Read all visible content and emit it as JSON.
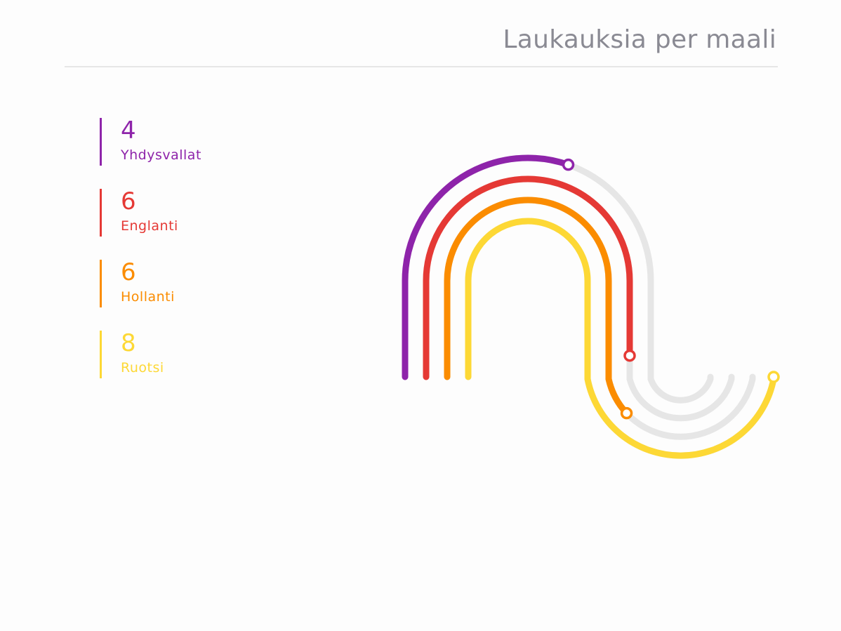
{
  "chart_data": {
    "type": "arc",
    "title": "Laukauksia per maali",
    "max": 8,
    "series": [
      {
        "name": "Yhdysvallat",
        "value": 4,
        "color": "#8e24aa"
      },
      {
        "name": "Englanti",
        "value": 6,
        "color": "#e53935"
      },
      {
        "name": "Hollanti",
        "value": 6,
        "color": "#fb8c00"
      },
      {
        "name": "Ruotsi",
        "value": 8,
        "color": "#fdd835"
      }
    ],
    "track_color": "#e6e6e6"
  }
}
